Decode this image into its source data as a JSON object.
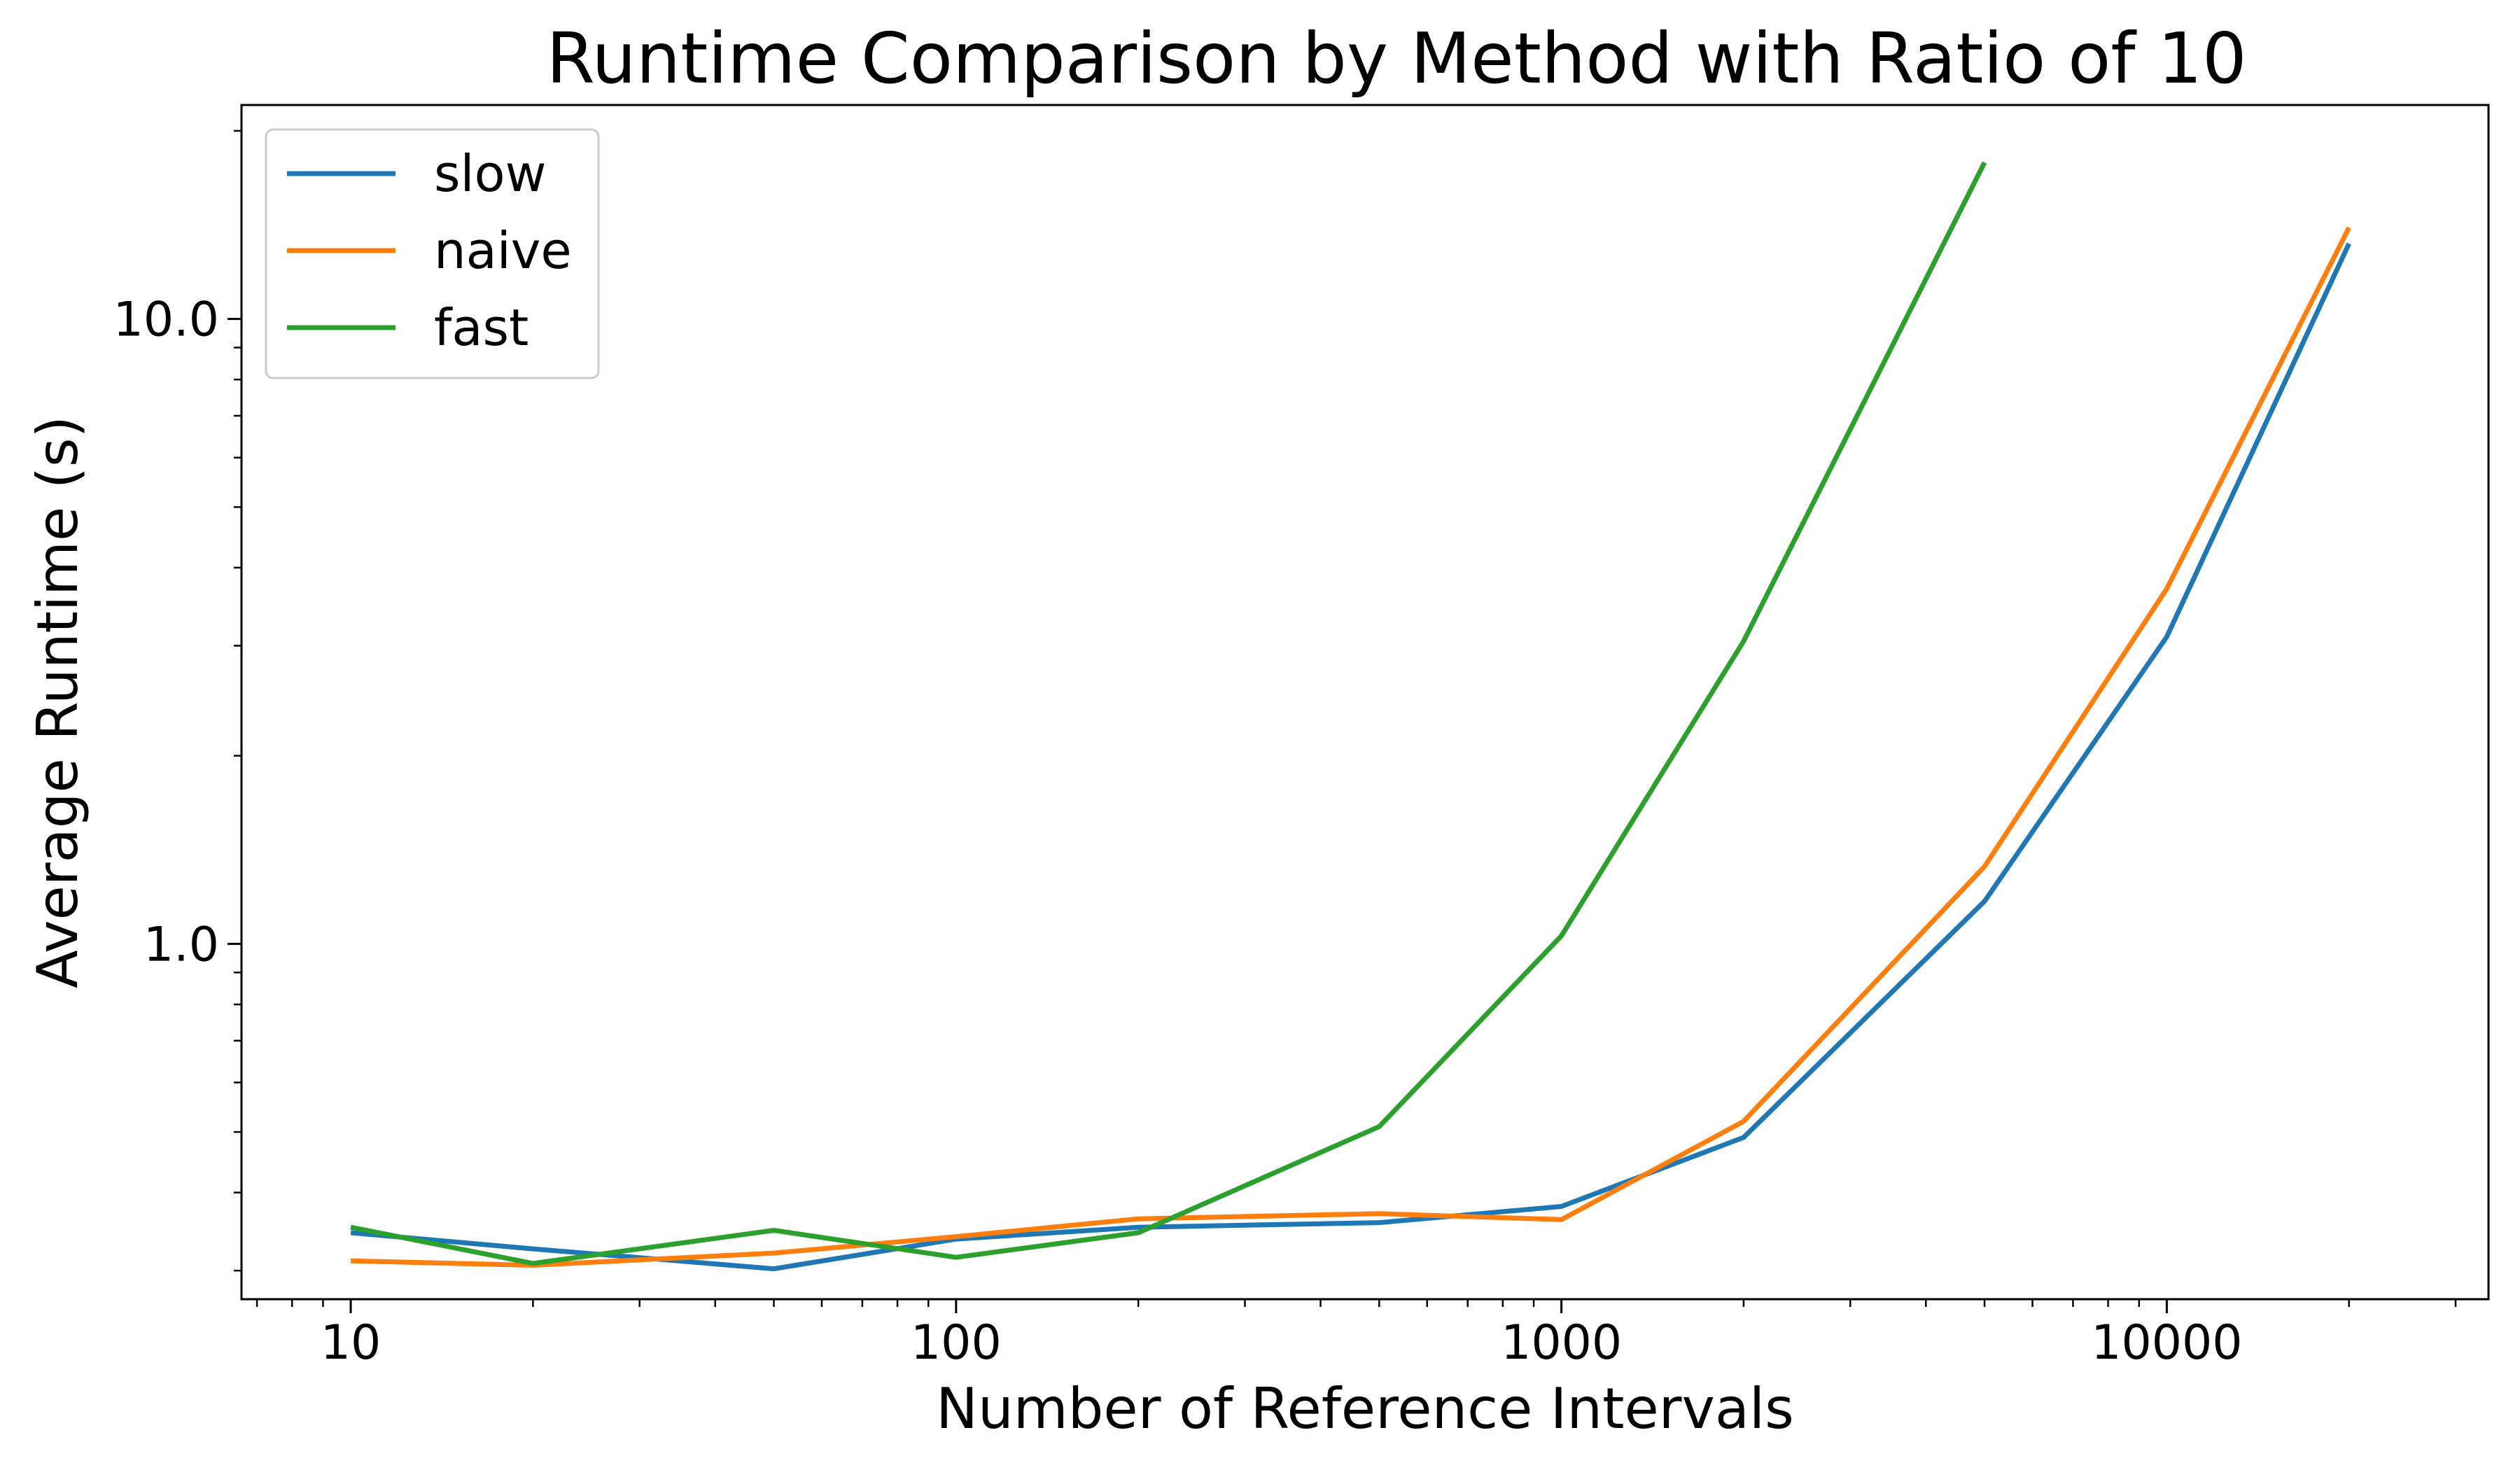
{
  "chart_data": {
    "type": "line",
    "title": "Runtime Comparison by Method with Ratio of 10",
    "xlabel": "Number of Reference Intervals",
    "ylabel": "Average Runtime (s)",
    "xscale": "log",
    "yscale": "log",
    "xlim": [
      6.6,
      34000
    ],
    "ylim": [
      0.27,
      22
    ],
    "xticks": [
      {
        "value": 10,
        "label": "10"
      },
      {
        "value": 100,
        "label": "100"
      },
      {
        "value": 1000,
        "label": "1000"
      },
      {
        "value": 10000,
        "label": "10000"
      }
    ],
    "yticks": [
      {
        "value": 1.0,
        "label": "1.0"
      },
      {
        "value": 10.0,
        "label": "10.0"
      }
    ],
    "grid": false,
    "legend": {
      "position": "top-left"
    },
    "series": [
      {
        "name": "slow",
        "color": "#1f77b4",
        "x": [
          10,
          20,
          50,
          100,
          200,
          500,
          1000,
          2000,
          5000,
          10000,
          20000
        ],
        "y": [
          0.345,
          0.325,
          0.302,
          0.337,
          0.352,
          0.358,
          0.38,
          0.49,
          1.17,
          3.1,
          13.2
        ]
      },
      {
        "name": "naive",
        "color": "#ff7f0e",
        "x": [
          10,
          20,
          50,
          100,
          200,
          500,
          1000,
          2000,
          5000,
          10000,
          20000
        ],
        "y": [
          0.311,
          0.306,
          0.32,
          0.34,
          0.363,
          0.37,
          0.362,
          0.52,
          1.33,
          3.7,
          14.0
        ]
      },
      {
        "name": "fast",
        "color": "#2ca02c",
        "x": [
          10,
          20,
          50,
          100,
          200,
          500,
          1000,
          2000,
          5000
        ],
        "y": [
          0.352,
          0.308,
          0.348,
          0.315,
          0.345,
          0.51,
          1.03,
          3.05,
          17.8
        ]
      }
    ]
  }
}
